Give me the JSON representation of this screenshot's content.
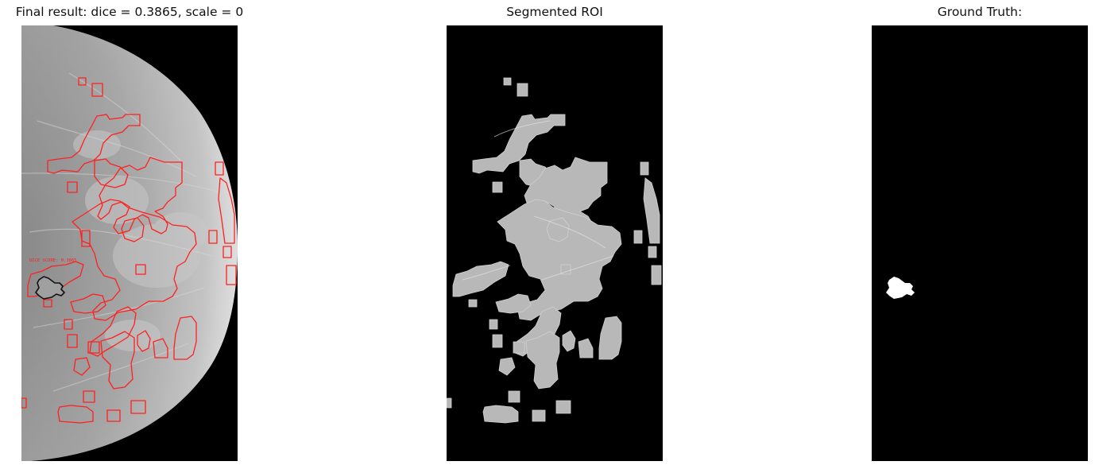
{
  "panels": [
    {
      "title": "Final result: dice = 0.3865, scale = 0",
      "overlay_text": "DICE SCORE: 0.3865",
      "image": "mammogram-with-red-roi-contours-and-black-ground-truth-contour"
    },
    {
      "title": "Segmented ROI",
      "image": "masked-mammogram-segmented-regions"
    },
    {
      "title": "Ground Truth:",
      "image": "binary-ground-truth-mask"
    }
  ],
  "colors": {
    "contour": "#ff2020",
    "ground_truth_contour": "#111111",
    "background": "#000000",
    "mask": "#ffffff"
  }
}
